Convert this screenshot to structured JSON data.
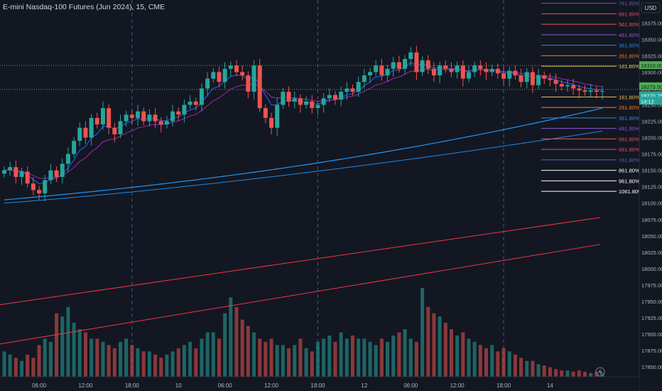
{
  "title": "E-mini Nasdaq-100 Futures (Jun 2024), 15, CME",
  "currency": "USD",
  "chart_data": {
    "type": "candlestick",
    "ylim": [
      17835,
      18410
    ],
    "y_ticks": [
      {
        "label": "18375.00",
        "v": 18375
      },
      {
        "label": "18350.00",
        "v": 18350
      },
      {
        "label": "18325.00",
        "v": 18325
      },
      {
        "label": "18300.00",
        "v": 18300
      },
      {
        "label": "18275.00",
        "v": 18275
      },
      {
        "label": "18250.00",
        "v": 18250
      },
      {
        "label": "18225.00",
        "v": 18225
      },
      {
        "label": "18200.00",
        "v": 18200
      },
      {
        "label": "18175.00",
        "v": 18175
      },
      {
        "label": "18150.00",
        "v": 18150
      },
      {
        "label": "18125.00",
        "v": 18125
      },
      {
        "label": "18100.00",
        "v": 18100
      },
      {
        "label": "18075.00",
        "v": 18075
      },
      {
        "label": "18050.00",
        "v": 18050
      },
      {
        "label": "18025.00",
        "v": 18025
      },
      {
        "label": "18000.00",
        "v": 18000
      },
      {
        "label": "17975.00",
        "v": 17975
      },
      {
        "label": "17950.00",
        "v": 17950
      },
      {
        "label": "17925.00",
        "v": 17925
      },
      {
        "label": "17900.00",
        "v": 17900
      },
      {
        "label": "17875.00",
        "v": 17875
      },
      {
        "label": "17850.00",
        "v": 17850
      }
    ],
    "x_ticks": [
      {
        "label": "06:00",
        "i": 6
      },
      {
        "label": "12:00",
        "i": 14
      },
      {
        "label": "18:00",
        "i": 22
      },
      {
        "label": "10",
        "i": 30
      },
      {
        "label": "06:00",
        "i": 38
      },
      {
        "label": "12:00",
        "i": 46
      },
      {
        "label": "18:00",
        "i": 54
      },
      {
        "label": "12",
        "i": 62
      },
      {
        "label": "06:00",
        "i": 70
      },
      {
        "label": "12:00",
        "i": 78
      },
      {
        "label": "18:00",
        "i": 86
      },
      {
        "label": "14",
        "i": 94
      }
    ],
    "session_breaks": [
      22,
      54,
      86
    ],
    "price_levels": [
      {
        "label": "18310.00",
        "value": 18310.0,
        "color": "#4caf50",
        "style": "dotted"
      },
      {
        "label": "18273.50",
        "value": 18273.5,
        "color": "#4caf50",
        "style": "dotted"
      },
      {
        "label": "18270.75",
        "value": 18270.75,
        "color": "#26a69a",
        "style": "none"
      },
      {
        "label": "14:12",
        "value": 18262,
        "color": "#26a69a",
        "style": "none"
      }
    ],
    "fib_levels": [
      {
        "label": "761.80%",
        "v": 18405,
        "color": "#5c5fb8"
      },
      {
        "label": "661.80%",
        "v": 18389,
        "color": "#e04e6c"
      },
      {
        "label": "561.80%",
        "v": 18373,
        "color": "#e05a5a"
      },
      {
        "label": "461.80%",
        "v": 18357,
        "color": "#8a5ad1"
      },
      {
        "label": "361.80%",
        "v": 18341,
        "color": "#2a8ad6"
      },
      {
        "label": "261.80%",
        "v": 18325,
        "color": "#f57f17"
      },
      {
        "label": "161.80%",
        "v": 18309,
        "color": "#e6c84a"
      },
      {
        "label": "161.80%",
        "v": 18262,
        "color": "#e6c84a"
      },
      {
        "label": "261.80%",
        "v": 18246,
        "color": "#f57f17"
      },
      {
        "label": "361.80%",
        "v": 18230,
        "color": "#2a8ad6"
      },
      {
        "label": "461.80%",
        "v": 18214,
        "color": "#8a5ad1"
      },
      {
        "label": "561.80%",
        "v": 18198,
        "color": "#e05a5a"
      },
      {
        "label": "661.80%",
        "v": 18182,
        "color": "#e04e6c"
      },
      {
        "label": "761.80%",
        "v": 18166,
        "color": "#5c5fb8"
      },
      {
        "label": "861.80%",
        "v": 18150,
        "color": "#ffffff"
      },
      {
        "label": "961.80%",
        "v": 18134,
        "color": "#ffffff"
      },
      {
        "label": "1061.80%",
        "v": 18118,
        "color": "#ffffff"
      }
    ],
    "n_bars": 104,
    "closes": [
      18150,
      18155,
      18140,
      18148,
      18130,
      18120,
      18115,
      18135,
      18150,
      18140,
      18160,
      18175,
      18195,
      18215,
      18200,
      18230,
      18220,
      18245,
      18215,
      18205,
      18225,
      18235,
      18230,
      18240,
      18225,
      18235,
      18225,
      18220,
      18225,
      18240,
      18235,
      18250,
      18255,
      18250,
      18275,
      18290,
      18300,
      18285,
      18305,
      18310,
      18300,
      18295,
      18270,
      18310,
      18245,
      18230,
      18215,
      18250,
      18270,
      18255,
      18260,
      18250,
      18255,
      18245,
      18250,
      18260,
      18265,
      18258,
      18270,
      18275,
      18270,
      18285,
      18295,
      18300,
      18310,
      18295,
      18305,
      18315,
      18305,
      18320,
      18330,
      18300,
      18318,
      18305,
      18295,
      18310,
      18305,
      18300,
      18310,
      18290,
      18300,
      18310,
      18305,
      18300,
      18305,
      18298,
      18290,
      18302,
      18295,
      18285,
      18300,
      18280,
      18295,
      18290,
      18288,
      18282,
      18278,
      18280,
      18275,
      18272,
      18270,
      18272,
      18270,
      18271
    ],
    "volumes": [
      40,
      35,
      30,
      25,
      35,
      30,
      50,
      60,
      55,
      100,
      95,
      110,
      85,
      75,
      70,
      60,
      60,
      55,
      50,
      45,
      55,
      60,
      50,
      45,
      40,
      40,
      35,
      30,
      35,
      40,
      45,
      50,
      55,
      45,
      60,
      70,
      70,
      60,
      100,
      125,
      110,
      90,
      80,
      70,
      60,
      55,
      60,
      50,
      50,
      45,
      50,
      60,
      45,
      40,
      55,
      60,
      65,
      55,
      70,
      60,
      65,
      60,
      60,
      55,
      50,
      60,
      55,
      65,
      70,
      75,
      60,
      55,
      140,
      110,
      100,
      95,
      85,
      75,
      65,
      70,
      60,
      55,
      50,
      45,
      50,
      40,
      45,
      40,
      35,
      30,
      25,
      25,
      20,
      18,
      15,
      12,
      10,
      10,
      8,
      10,
      8,
      6,
      8,
      6
    ],
    "ma_short_color": "#2962ff",
    "ma_long_color": "#2196f3",
    "channel_color": "#f23645"
  }
}
